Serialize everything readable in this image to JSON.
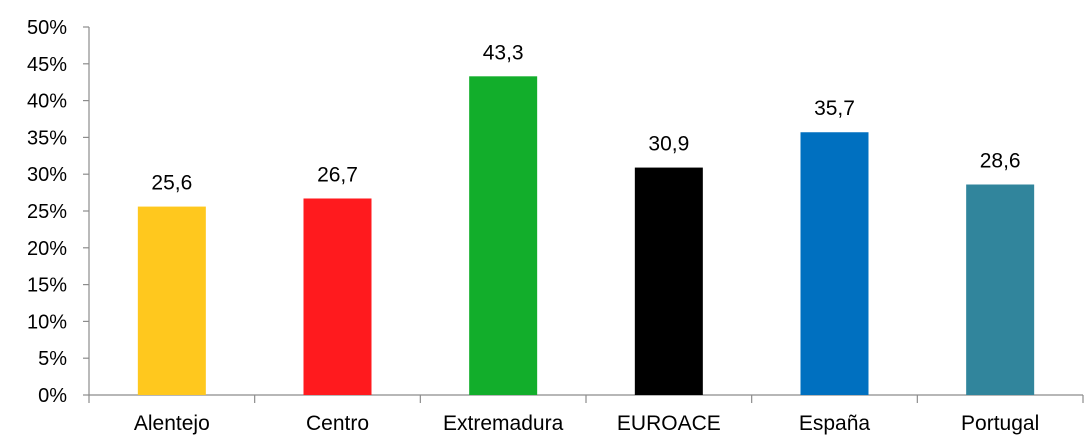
{
  "chart_data": {
    "type": "bar",
    "categories": [
      "Alentejo",
      "Centro",
      "Extremadura",
      "EUROACE",
      "España",
      "Portugal"
    ],
    "values": [
      25.6,
      26.7,
      43.3,
      30.9,
      35.7,
      28.6
    ],
    "data_labels": [
      "25,6",
      "26,7",
      "43,3",
      "30,9",
      "35,7",
      "28,6"
    ],
    "colors": [
      "#FFC81E",
      "#FF1A1E",
      "#12AE2B",
      "#000000",
      "#0070C0",
      "#31859C"
    ],
    "title": "",
    "xlabel": "",
    "ylabel": "",
    "ylim": [
      0,
      50
    ],
    "y_ticks": [
      0,
      5,
      10,
      15,
      20,
      25,
      30,
      35,
      40,
      45,
      50
    ],
    "y_tick_labels": [
      "0%",
      "5%",
      "10%",
      "15%",
      "20%",
      "25%",
      "30%",
      "35%",
      "40%",
      "45%",
      "50%"
    ],
    "grid": false,
    "legend": "none"
  }
}
